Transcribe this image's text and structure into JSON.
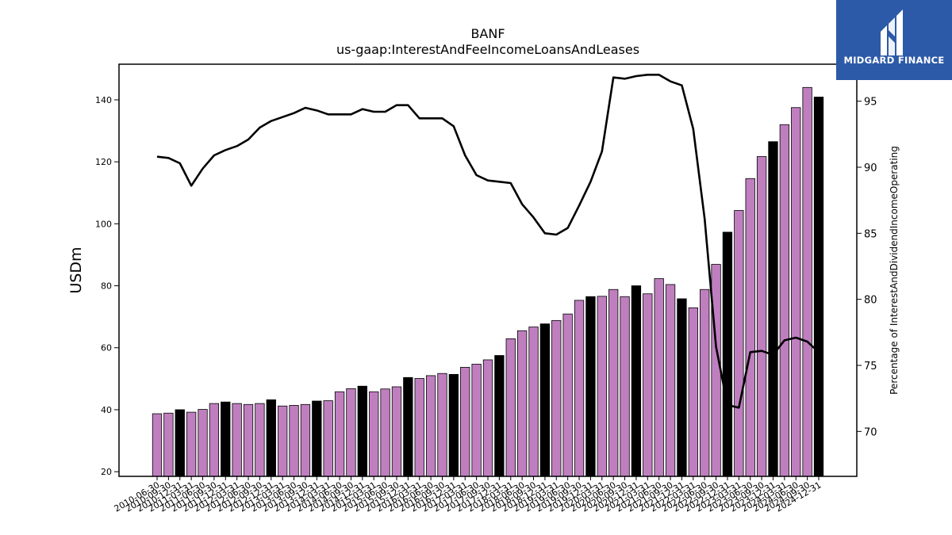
{
  "chart_data": {
    "type": "bar",
    "title": "BANF",
    "subtitle": "us-gaap:InterestAndFeeIncomeLoansAndLeases",
    "ylabel": "USDm",
    "y2label": "Percentage of InterestAndDividendIncomeOperating",
    "ylim": [
      18.5,
      151.5
    ],
    "y2lim": [
      66.6,
      97.8
    ],
    "yticks": [
      20,
      40,
      60,
      80,
      100,
      120,
      140
    ],
    "y2ticks": [
      70,
      75,
      80,
      85,
      90,
      95
    ],
    "bar_colors": {
      "quarter": "#bf7fbf",
      "year_end": "#000000"
    },
    "line_color": "#000000",
    "categories": [
      "2010-06-30",
      "2010-09-30",
      "2010-12-31",
      "2011-03-31",
      "2011-06-30",
      "2011-09-30",
      "2011-12-31",
      "2012-03-31",
      "2012-06-30",
      "2012-09-30",
      "2012-12-31",
      "2013-03-31",
      "2013-06-30",
      "2013-09-30",
      "2013-12-31",
      "2014-03-31",
      "2014-06-30",
      "2014-09-30",
      "2014-12-31",
      "2015-03-31",
      "2015-06-30",
      "2015-09-30",
      "2015-12-31",
      "2016-03-31",
      "2016-06-30",
      "2016-09-30",
      "2016-12-31",
      "2017-03-31",
      "2017-06-30",
      "2017-09-30",
      "2017-12-31",
      "2018-03-31",
      "2018-06-30",
      "2018-09-30",
      "2018-12-31",
      "2019-03-31",
      "2019-06-30",
      "2019-09-30",
      "2019-12-31",
      "2020-03-31",
      "2020-06-30",
      "2020-09-30",
      "2020-12-31",
      "2021-03-31",
      "2021-06-30",
      "2021-09-30",
      "2021-12-31",
      "2022-03-31",
      "2022-06-30",
      "2022-09-30",
      "2022-12-31",
      "2023-03-31",
      "2023-06-30",
      "2023-09-30",
      "2023-12-31",
      "2024-03-31",
      "2024-06-30",
      "2024-09-30",
      "2024-12-31"
    ],
    "series": [
      {
        "kind": "bar",
        "axis": "left",
        "values": [
          38.7,
          38.9,
          40.0,
          39.2,
          40.1,
          42.0,
          42.5,
          42.0,
          41.7,
          42.0,
          43.2,
          41.2,
          41.4,
          41.7,
          42.8,
          42.9,
          45.8,
          46.8,
          47.6,
          45.8,
          46.7,
          47.4,
          50.4,
          50.1,
          51.0,
          51.7,
          51.4,
          53.7,
          54.7,
          56.1,
          57.5,
          62.9,
          65.5,
          66.7,
          67.7,
          68.8,
          70.9,
          75.3,
          76.5,
          76.6,
          78.8,
          76.5,
          80.0,
          77.4,
          82.3,
          80.4,
          75.8,
          72.9,
          78.8,
          86.9,
          97.3,
          104.3,
          114.6,
          121.7,
          126.5,
          132.0,
          137.5,
          144.0,
          140.9
        ]
      },
      {
        "kind": "line",
        "axis": "right",
        "values": [
          90.8,
          90.7,
          90.3,
          88.6,
          89.9,
          90.9,
          91.3,
          91.6,
          92.1,
          93.0,
          93.5,
          93.8,
          94.1,
          94.5,
          94.3,
          94.0,
          94.0,
          94.0,
          94.4,
          94.2,
          94.2,
          94.7,
          94.7,
          93.7,
          93.7,
          93.7,
          93.1,
          90.9,
          89.4,
          89.0,
          88.9,
          88.8,
          87.2,
          86.2,
          85.0,
          84.9,
          85.4,
          87.1,
          88.9,
          91.2,
          96.8,
          96.7,
          96.9,
          97.0,
          97.0,
          96.5,
          96.2,
          92.9,
          86.1,
          76.4,
          72.0,
          71.8,
          76.0,
          76.1,
          75.8,
          76.9,
          77.1,
          76.8,
          76.0
        ]
      }
    ],
    "legend": "none",
    "grid": false
  },
  "logo": {
    "text": "MIDGARD FINANCE",
    "icon": "midgard-logo-icon"
  }
}
